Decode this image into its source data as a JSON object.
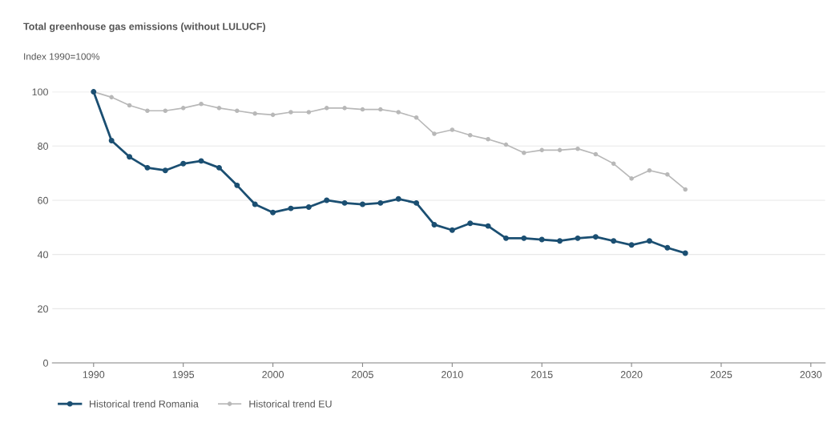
{
  "chart_data": {
    "type": "line",
    "title": "Total greenhouse gas emissions (without LULUCF)",
    "ylabel": "Index 1990=100%",
    "x": [
      1990,
      1991,
      1992,
      1993,
      1994,
      1995,
      1996,
      1997,
      1998,
      1999,
      2000,
      2001,
      2002,
      2003,
      2004,
      2005,
      2006,
      2007,
      2008,
      2009,
      2010,
      2011,
      2012,
      2013,
      2014,
      2015,
      2016,
      2017,
      2018,
      2019,
      2020,
      2021,
      2022,
      2023
    ],
    "series": [
      {
        "name": "Historical trend Romania",
        "color": "#1b4f72",
        "values": [
          100,
          82,
          76,
          72,
          71,
          73.5,
          74.5,
          72,
          65.5,
          58.5,
          55.5,
          57,
          57.5,
          60,
          59,
          58.5,
          59,
          60.5,
          59,
          51,
          49,
          51.5,
          50.5,
          46,
          46,
          45.5,
          45,
          46,
          46.5,
          45,
          43.5,
          45,
          42.5,
          40.5
        ]
      },
      {
        "name": "Historical trend EU",
        "color": "#b8b8b8",
        "values": [
          100,
          98,
          95,
          93,
          93,
          94,
          95.5,
          94,
          93,
          92,
          91.5,
          92.5,
          92.5,
          94,
          94,
          93.5,
          93.5,
          92.5,
          90.5,
          84.5,
          86,
          84,
          82.5,
          80.5,
          77.5,
          78.5,
          78.5,
          79,
          77,
          73.5,
          68,
          71,
          69.5,
          64
        ]
      }
    ],
    "xlim": [
      1987.7,
      2030.8
    ],
    "xticks": [
      1990,
      1995,
      2000,
      2005,
      2010,
      2015,
      2020,
      2025,
      2030
    ],
    "ylim": [
      0,
      100
    ],
    "yticks": [
      0,
      20,
      40,
      60,
      80,
      100
    ],
    "grid": "y",
    "legend": "bottom left",
    "marker": "circle",
    "line_style": "solid"
  }
}
